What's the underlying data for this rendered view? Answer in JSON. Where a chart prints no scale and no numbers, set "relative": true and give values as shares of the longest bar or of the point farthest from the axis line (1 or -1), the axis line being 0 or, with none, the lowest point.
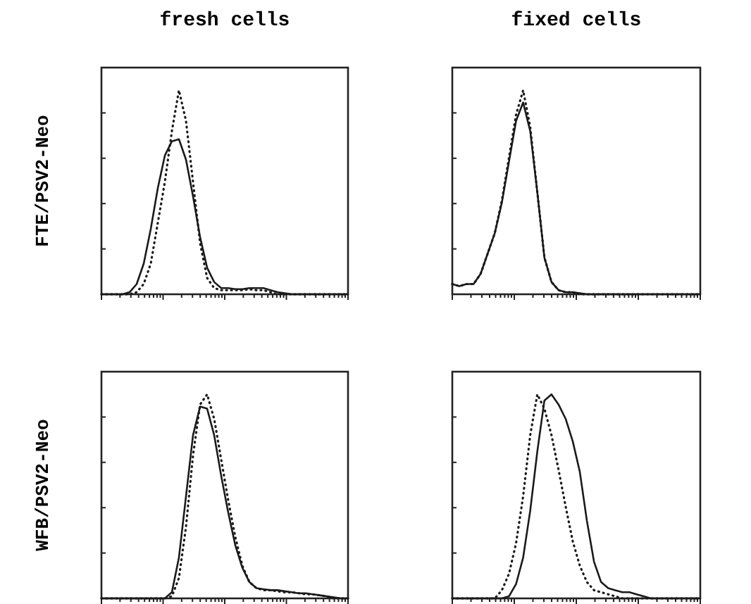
{
  "chart_data": [
    {
      "type": "line",
      "title": "fresh cells",
      "ylabel": "FTE/PSV2-Neo",
      "relative": true,
      "categories": [
        null,
        null,
        null,
        null,
        null,
        null,
        null,
        null,
        null,
        null,
        null,
        null,
        null,
        null,
        null,
        null,
        null,
        null,
        null,
        null,
        null,
        null,
        null,
        null,
        null,
        null,
        null,
        null,
        null,
        null,
        null,
        null,
        null,
        null,
        null,
        null
      ],
      "series": [
        {
          "color": "#1a1a1a",
          "line_style": "solid",
          "values": [
            0,
            0,
            0,
            0,
            0.01,
            0.05,
            0.15,
            0.32,
            0.52,
            0.68,
            0.75,
            0.76,
            0.66,
            0.48,
            0.28,
            0.13,
            0.06,
            0.03,
            0.03,
            0.025,
            0.025,
            0.03,
            0.03,
            0.03,
            0.02,
            0.01,
            0.005,
            0,
            0,
            0,
            0,
            0,
            0,
            0,
            0,
            0
          ]
        },
        {
          "color": "#1a1a1a",
          "line_style": "dotted",
          "values": [
            0,
            0,
            0,
            0,
            0,
            0.01,
            0.05,
            0.15,
            0.35,
            0.55,
            0.8,
            1.0,
            0.85,
            0.55,
            0.25,
            0.08,
            0.03,
            0.02,
            0.02,
            0.02,
            0.02,
            0.025,
            0.02,
            0.02,
            0.01,
            0,
            0,
            0,
            0,
            0,
            0,
            0,
            0,
            0,
            0,
            0
          ]
        }
      ]
    },
    {
      "type": "line",
      "title": "fixed cells",
      "relative": true,
      "categories": [
        null,
        null,
        null,
        null,
        null,
        null,
        null,
        null,
        null,
        null,
        null,
        null,
        null,
        null,
        null,
        null,
        null,
        null,
        null,
        null,
        null,
        null,
        null,
        null,
        null,
        null,
        null,
        null,
        null,
        null,
        null,
        null,
        null,
        null,
        null,
        null
      ],
      "series": [
        {
          "color": "#1a1a1a",
          "line_style": "solid",
          "values": [
            0.05,
            0.04,
            0.05,
            0.05,
            0.1,
            0.2,
            0.3,
            0.45,
            0.65,
            0.85,
            0.94,
            0.8,
            0.5,
            0.18,
            0.06,
            0.02,
            0.01,
            0.01,
            0.005,
            0,
            0,
            0,
            0,
            0,
            0,
            0,
            0,
            0,
            0,
            0,
            0,
            0,
            0,
            0,
            0,
            0
          ]
        },
        {
          "color": "#1a1a1a",
          "line_style": "dotted",
          "values": [
            0.05,
            0.04,
            0.05,
            0.05,
            0.1,
            0.2,
            0.3,
            0.46,
            0.67,
            0.88,
            1.0,
            0.82,
            0.5,
            0.18,
            0.06,
            0.02,
            0.01,
            0.01,
            0,
            0,
            0,
            0,
            0,
            0,
            0,
            0,
            0,
            0,
            0,
            0,
            0,
            0,
            0,
            0,
            0,
            0
          ]
        }
      ]
    },
    {
      "type": "line",
      "ylabel": "WFB/PSV2-Neo",
      "relative": true,
      "categories": [
        null,
        null,
        null,
        null,
        null,
        null,
        null,
        null,
        null,
        null,
        null,
        null,
        null,
        null,
        null,
        null,
        null,
        null,
        null,
        null,
        null,
        null,
        null,
        null,
        null,
        null,
        null,
        null,
        null,
        null,
        null,
        null,
        null,
        null,
        null,
        null
      ],
      "series": [
        {
          "color": "#1a1a1a",
          "line_style": "solid",
          "values": [
            0,
            0,
            0,
            0,
            0,
            0,
            0,
            0,
            0,
            0,
            0.03,
            0.2,
            0.5,
            0.8,
            0.94,
            0.93,
            0.8,
            0.6,
            0.42,
            0.26,
            0.15,
            0.08,
            0.05,
            0.045,
            0.04,
            0.04,
            0.035,
            0.03,
            0.025,
            0.025,
            0.02,
            0.015,
            0.01,
            0.005,
            0,
            0
          ]
        },
        {
          "color": "#1a1a1a",
          "line_style": "dotted",
          "values": [
            0,
            0,
            0,
            0,
            0,
            0,
            0,
            0,
            0,
            0,
            0.01,
            0.1,
            0.35,
            0.7,
            0.95,
            1.0,
            0.88,
            0.68,
            0.48,
            0.3,
            0.16,
            0.08,
            0.05,
            0.04,
            0.04,
            0.035,
            0.03,
            0.03,
            0.025,
            0.02,
            0.02,
            0.015,
            0.01,
            0,
            0,
            0
          ]
        }
      ]
    },
    {
      "type": "line",
      "relative": true,
      "categories": [
        null,
        null,
        null,
        null,
        null,
        null,
        null,
        null,
        null,
        null,
        null,
        null,
        null,
        null,
        null,
        null,
        null,
        null,
        null,
        null,
        null,
        null,
        null,
        null,
        null,
        null,
        null,
        null,
        null,
        null,
        null,
        null,
        null,
        null,
        null,
        null
      ],
      "series": [
        {
          "color": "#1a1a1a",
          "line_style": "solid",
          "values": [
            0,
            0,
            0,
            0,
            0,
            0,
            0,
            0,
            0.01,
            0.07,
            0.2,
            0.43,
            0.72,
            0.97,
            1.0,
            0.95,
            0.88,
            0.77,
            0.62,
            0.38,
            0.18,
            0.08,
            0.05,
            0.04,
            0.03,
            0.03,
            0.02,
            0.01,
            0,
            0,
            0,
            0,
            0,
            0,
            0,
            0
          ]
        },
        {
          "color": "#1a1a1a",
          "line_style": "dotted",
          "values": [
            0,
            0,
            0,
            0,
            0,
            0,
            0,
            0.04,
            0.12,
            0.27,
            0.5,
            0.8,
            1.0,
            0.93,
            0.8,
            0.63,
            0.45,
            0.28,
            0.16,
            0.08,
            0.04,
            0.03,
            0.02,
            0.01,
            0,
            0,
            0,
            0,
            0,
            0,
            0,
            0,
            0,
            0,
            0,
            0
          ]
        }
      ]
    }
  ]
}
